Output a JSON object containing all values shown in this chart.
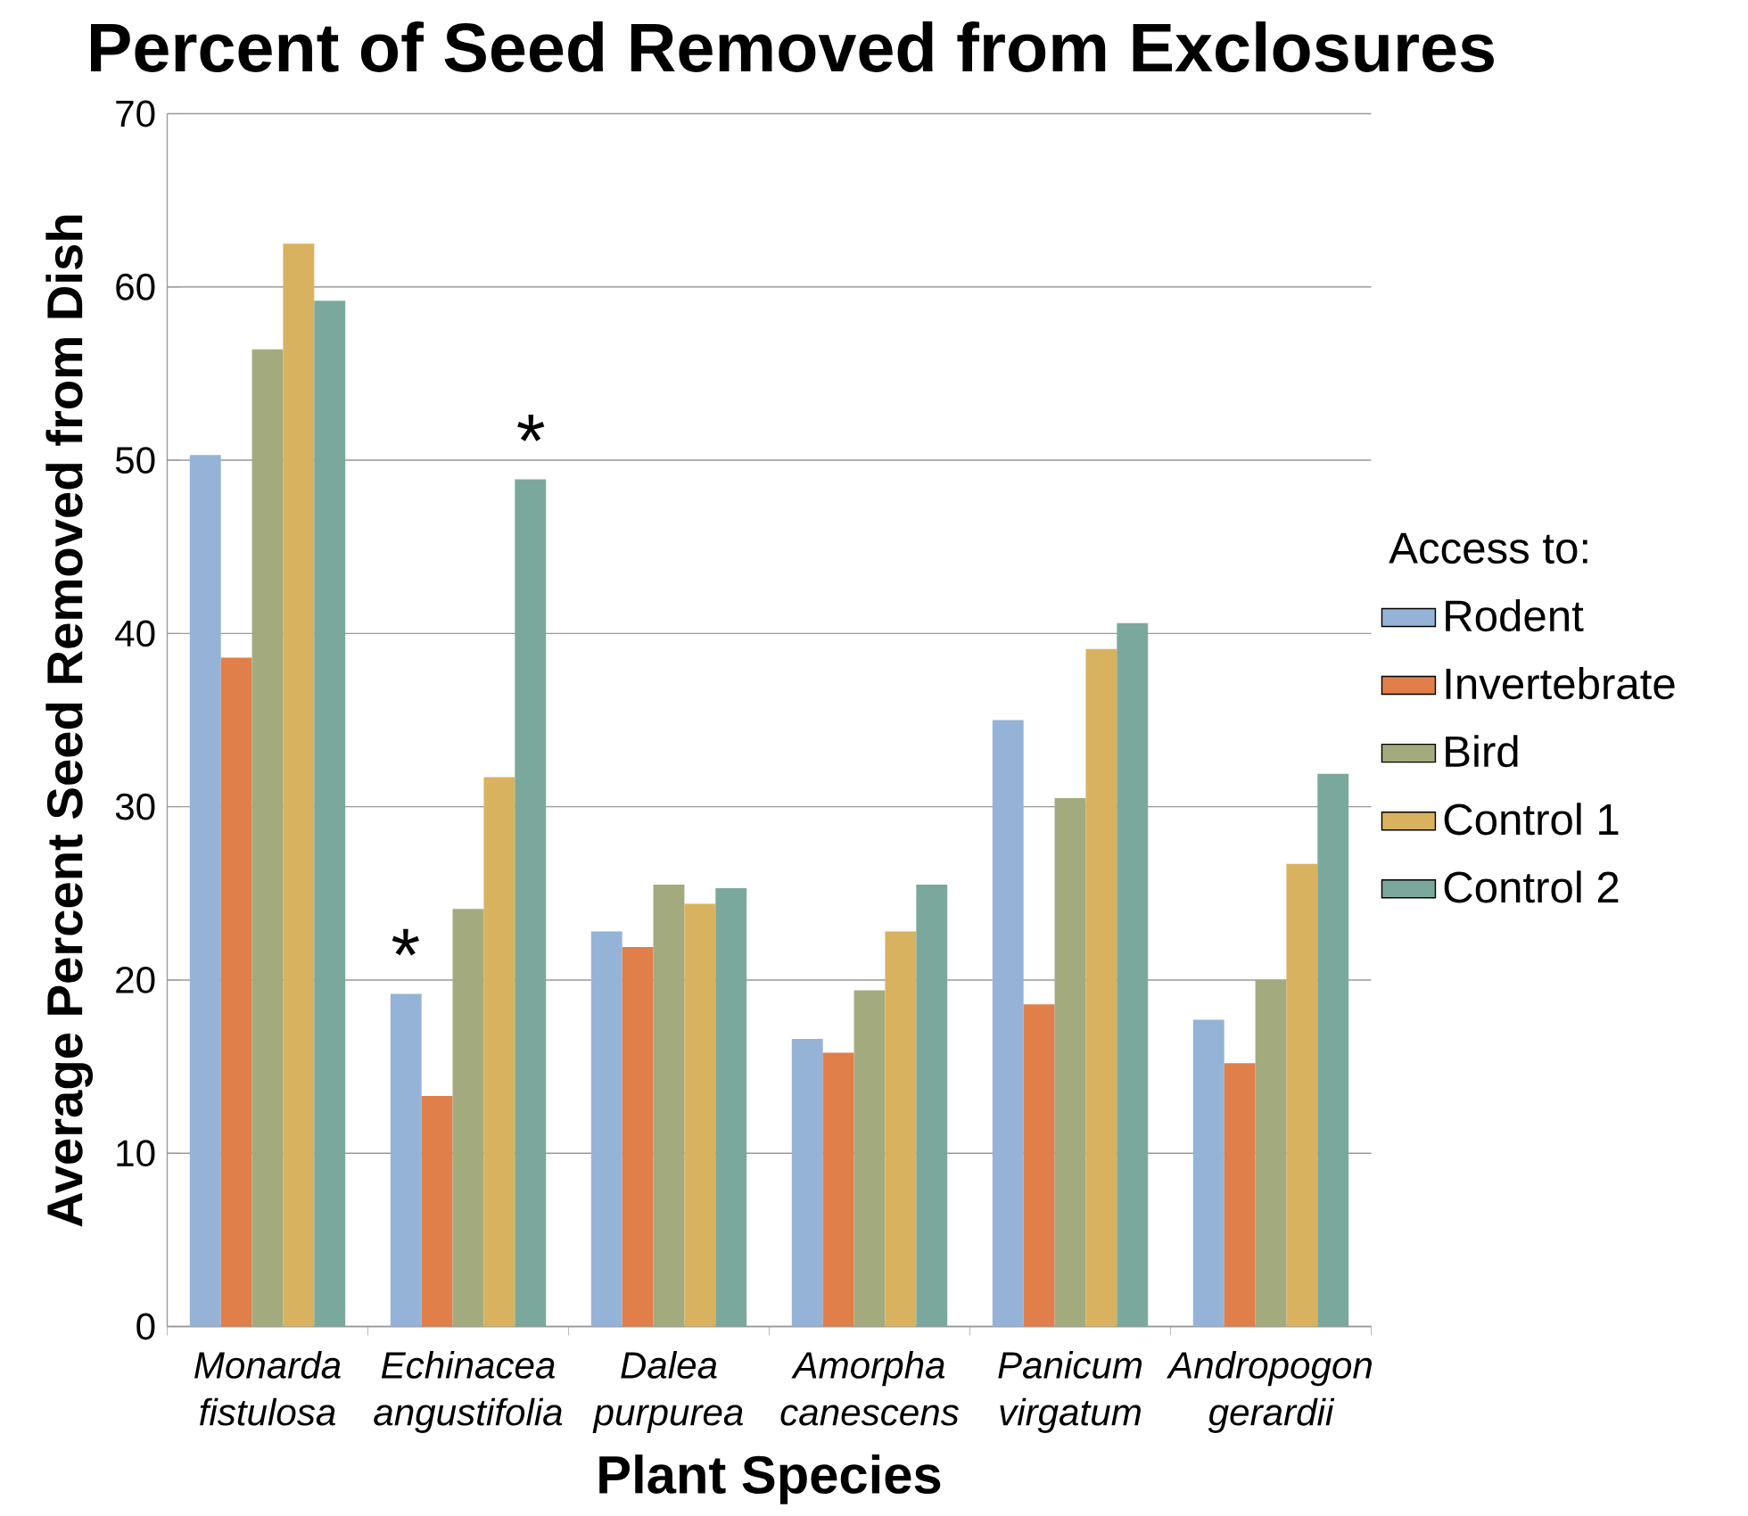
{
  "chart_data": {
    "type": "bar",
    "title": "Percent of Seed Removed from Exclosures",
    "xlabel": "Plant Species",
    "ylabel": "Average Percent Seed Removed from Dish",
    "legend_title": "Access to:",
    "categories": [
      "Monarda fistulosa",
      "Echinacea angustifolia",
      "Dalea purpurea",
      "Amorpha canescens",
      "Panicum virgatum",
      "Andropogon gerardii"
    ],
    "series": [
      {
        "name": "Rodent",
        "color": "#95b3d7",
        "values": [
          50.3,
          19.2,
          22.8,
          16.6,
          35.0,
          17.7
        ]
      },
      {
        "name": "Invertebrate",
        "color": "#e07f4a",
        "values": [
          38.6,
          13.3,
          21.9,
          15.8,
          18.6,
          15.2
        ]
      },
      {
        "name": "Bird",
        "color": "#a3ab7e",
        "values": [
          56.4,
          24.1,
          25.5,
          19.4,
          30.5,
          20.0
        ]
      },
      {
        "name": "Control 1",
        "color": "#d8b25e",
        "values": [
          62.5,
          31.7,
          24.4,
          22.8,
          39.1,
          26.7
        ]
      },
      {
        "name": "Control 2",
        "color": "#7ba89c",
        "values": [
          59.2,
          48.9,
          25.3,
          25.5,
          40.6,
          31.9
        ]
      }
    ],
    "ylim": [
      0,
      70
    ],
    "yticks": [
      0,
      10,
      20,
      30,
      40,
      50,
      60,
      70
    ],
    "grid": "y",
    "legend": "right",
    "annotations": [
      "*",
      "*"
    ]
  }
}
